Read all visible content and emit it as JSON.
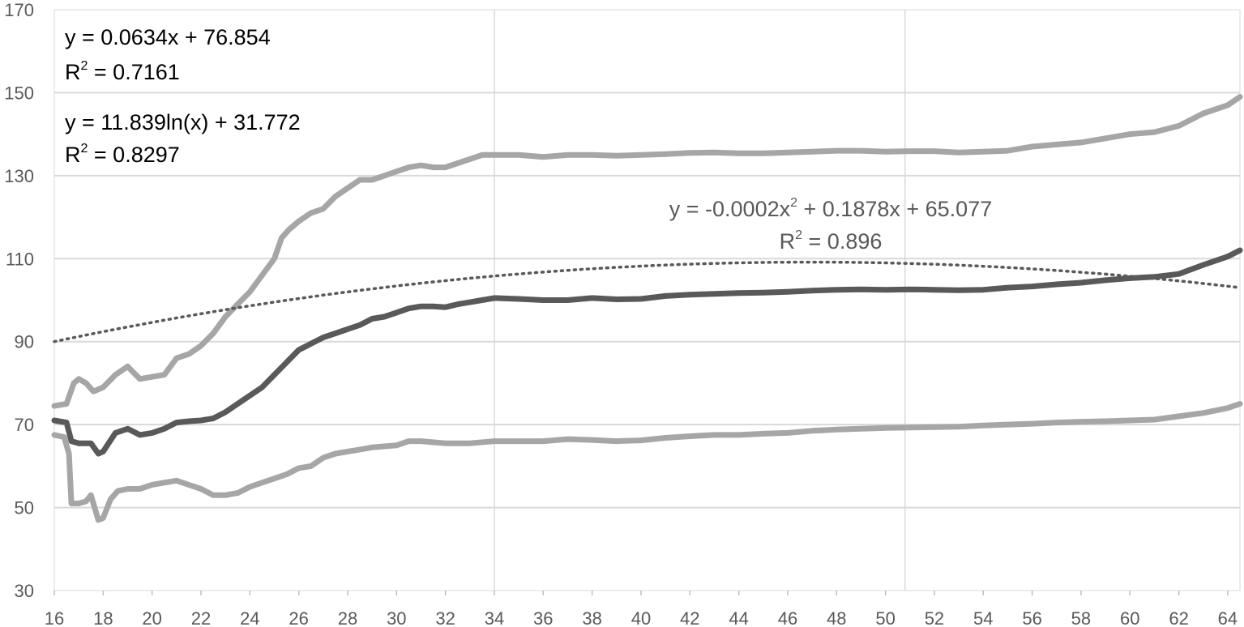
{
  "chart_data": {
    "type": "line",
    "x_ticks": [
      16,
      18,
      20,
      22,
      24,
      26,
      28,
      30,
      32,
      34,
      36,
      38,
      40,
      42,
      44,
      46,
      48,
      50,
      52,
      54,
      56,
      58,
      60,
      62,
      64
    ],
    "y_ticks": [
      30,
      50,
      70,
      90,
      110,
      130,
      150,
      170
    ],
    "xlim": [
      16,
      64.5
    ],
    "ylim": [
      30,
      170
    ],
    "grid": "horizontal",
    "x_reference_lines": [
      34,
      50.8
    ],
    "series": [
      {
        "role": "upper",
        "color": "#a6a6a6",
        "points": [
          [
            16,
            74.5
          ],
          [
            16.5,
            75
          ],
          [
            16.8,
            80
          ],
          [
            17,
            81
          ],
          [
            17.3,
            80
          ],
          [
            17.6,
            78
          ],
          [
            18,
            79
          ],
          [
            18.5,
            82
          ],
          [
            19,
            84
          ],
          [
            19.5,
            81
          ],
          [
            20,
            81.5
          ],
          [
            20.5,
            82
          ],
          [
            21,
            86
          ],
          [
            21.5,
            87
          ],
          [
            22,
            89
          ],
          [
            22.5,
            92
          ],
          [
            23,
            96
          ],
          [
            23.5,
            99
          ],
          [
            24,
            102
          ],
          [
            24.5,
            106
          ],
          [
            25,
            110
          ],
          [
            25.3,
            115
          ],
          [
            25.6,
            117
          ],
          [
            26,
            119
          ],
          [
            26.5,
            121
          ],
          [
            27,
            122
          ],
          [
            27.5,
            125
          ],
          [
            28,
            127
          ],
          [
            28.5,
            129
          ],
          [
            29,
            129
          ],
          [
            29.5,
            130
          ],
          [
            30,
            131
          ],
          [
            30.5,
            132
          ],
          [
            31,
            132.5
          ],
          [
            31.5,
            132
          ],
          [
            32,
            132
          ],
          [
            32.5,
            133
          ],
          [
            33,
            134
          ],
          [
            33.5,
            135
          ],
          [
            34,
            135
          ],
          [
            35,
            135
          ],
          [
            36,
            134.5
          ],
          [
            37,
            135
          ],
          [
            38,
            135
          ],
          [
            39,
            134.8
          ],
          [
            40,
            135
          ],
          [
            41,
            135.2
          ],
          [
            42,
            135.5
          ],
          [
            43,
            135.6
          ],
          [
            44,
            135.4
          ],
          [
            45,
            135.4
          ],
          [
            46,
            135.6
          ],
          [
            47,
            135.8
          ],
          [
            48,
            136
          ],
          [
            49,
            136
          ],
          [
            50,
            135.8
          ],
          [
            51,
            135.9
          ],
          [
            52,
            135.9
          ],
          [
            53,
            135.6
          ],
          [
            54,
            135.8
          ],
          [
            55,
            136
          ],
          [
            56,
            137
          ],
          [
            57,
            137.5
          ],
          [
            58,
            138
          ],
          [
            59,
            139
          ],
          [
            60,
            140
          ],
          [
            61,
            140.5
          ],
          [
            62,
            142
          ],
          [
            63,
            145
          ],
          [
            64,
            147
          ],
          [
            64.5,
            149
          ]
        ]
      },
      {
        "role": "mean",
        "color": "#595959",
        "points": [
          [
            16,
            71
          ],
          [
            16.5,
            70.5
          ],
          [
            16.7,
            66
          ],
          [
            17,
            65.5
          ],
          [
            17.5,
            65.5
          ],
          [
            17.8,
            63
          ],
          [
            18,
            63.5
          ],
          [
            18.5,
            68
          ],
          [
            19,
            69
          ],
          [
            19.5,
            67.5
          ],
          [
            20,
            68
          ],
          [
            20.5,
            69
          ],
          [
            21,
            70.5
          ],
          [
            21.5,
            70.8
          ],
          [
            22,
            71
          ],
          [
            22.5,
            71.5
          ],
          [
            23,
            73
          ],
          [
            23.5,
            75
          ],
          [
            24,
            77
          ],
          [
            24.5,
            79
          ],
          [
            25,
            82
          ],
          [
            25.5,
            85
          ],
          [
            26,
            88
          ],
          [
            26.5,
            89.5
          ],
          [
            27,
            91
          ],
          [
            27.5,
            92
          ],
          [
            28,
            93
          ],
          [
            28.5,
            94
          ],
          [
            29,
            95.5
          ],
          [
            29.5,
            96
          ],
          [
            30,
            97
          ],
          [
            30.5,
            98
          ],
          [
            31,
            98.5
          ],
          [
            31.5,
            98.5
          ],
          [
            32,
            98.3
          ],
          [
            32.5,
            99
          ],
          [
            33,
            99.5
          ],
          [
            33.5,
            100
          ],
          [
            34,
            100.5
          ],
          [
            35,
            100.3
          ],
          [
            36,
            100
          ],
          [
            37,
            100
          ],
          [
            38,
            100.5
          ],
          [
            39,
            100.2
          ],
          [
            40,
            100.3
          ],
          [
            41,
            101
          ],
          [
            42,
            101.3
          ],
          [
            43,
            101.5
          ],
          [
            44,
            101.7
          ],
          [
            45,
            101.8
          ],
          [
            46,
            102
          ],
          [
            47,
            102.3
          ],
          [
            48,
            102.5
          ],
          [
            49,
            102.6
          ],
          [
            50,
            102.5
          ],
          [
            51,
            102.6
          ],
          [
            52,
            102.5
          ],
          [
            53,
            102.4
          ],
          [
            54,
            102.5
          ],
          [
            55,
            103
          ],
          [
            56,
            103.3
          ],
          [
            57,
            103.8
          ],
          [
            58,
            104.2
          ],
          [
            59,
            104.8
          ],
          [
            60,
            105.3
          ],
          [
            61,
            105.6
          ],
          [
            62,
            106.3
          ],
          [
            63,
            108.5
          ],
          [
            64,
            110.5
          ],
          [
            64.5,
            112
          ]
        ]
      },
      {
        "role": "lower",
        "color": "#a6a6a6",
        "points": [
          [
            16,
            67.5
          ],
          [
            16.4,
            67
          ],
          [
            16.6,
            63
          ],
          [
            16.7,
            51
          ],
          [
            17,
            51
          ],
          [
            17.3,
            51.5
          ],
          [
            17.5,
            53
          ],
          [
            17.8,
            47
          ],
          [
            18,
            47.5
          ],
          [
            18.3,
            52
          ],
          [
            18.6,
            54
          ],
          [
            19,
            54.5
          ],
          [
            19.5,
            54.5
          ],
          [
            20,
            55.5
          ],
          [
            20.5,
            56
          ],
          [
            21,
            56.5
          ],
          [
            21.5,
            55.5
          ],
          [
            22,
            54.5
          ],
          [
            22.5,
            53
          ],
          [
            23,
            53
          ],
          [
            23.5,
            53.5
          ],
          [
            24,
            55
          ],
          [
            24.5,
            56
          ],
          [
            25,
            57
          ],
          [
            25.5,
            58
          ],
          [
            26,
            59.5
          ],
          [
            26.5,
            60
          ],
          [
            27,
            62
          ],
          [
            27.5,
            63
          ],
          [
            28,
            63.5
          ],
          [
            28.5,
            64
          ],
          [
            29,
            64.5
          ],
          [
            30,
            65
          ],
          [
            30.5,
            66
          ],
          [
            31,
            66
          ],
          [
            32,
            65.5
          ],
          [
            33,
            65.5
          ],
          [
            34,
            66
          ],
          [
            35,
            66
          ],
          [
            36,
            66
          ],
          [
            37,
            66.5
          ],
          [
            38,
            66.3
          ],
          [
            39,
            66
          ],
          [
            40,
            66.2
          ],
          [
            41,
            66.8
          ],
          [
            42,
            67.2
          ],
          [
            43,
            67.5
          ],
          [
            44,
            67.5
          ],
          [
            45,
            67.8
          ],
          [
            46,
            68
          ],
          [
            47,
            68.5
          ],
          [
            48,
            68.8
          ],
          [
            49,
            69
          ],
          [
            50,
            69.2
          ],
          [
            51,
            69.3
          ],
          [
            52,
            69.4
          ],
          [
            53,
            69.5
          ],
          [
            54,
            69.8
          ],
          [
            55,
            70
          ],
          [
            56,
            70.2
          ],
          [
            57,
            70.5
          ],
          [
            58,
            70.7
          ],
          [
            59,
            70.8
          ],
          [
            60,
            71
          ],
          [
            61,
            71.2
          ],
          [
            62,
            72
          ],
          [
            63,
            72.8
          ],
          [
            64,
            74
          ],
          [
            64.5,
            75
          ]
        ]
      },
      {
        "role": "trendline",
        "style": "dotted",
        "color": "#595959",
        "quadratic_a": -0.0002,
        "quadratic_b": 0.1878,
        "quadratic_c": 65.077,
        "x_scale": 10,
        "x_range": [
          16,
          64.5
        ]
      }
    ],
    "annotations": [
      {
        "line1": "y = 0.0634x + 76.854",
        "r2_prefix": "R",
        "r2_value": " = 0.7161"
      },
      {
        "line1": "y = 11.839ln(x) + 31.772",
        "r2_prefix": "R",
        "r2_value": " = 0.8297"
      },
      {
        "line1_a": "y = -0.0002x",
        "line1_b": " + 0.1878x + 65.077",
        "r2_prefix": "R",
        "r2_value": " = 0.896"
      }
    ],
    "superscript": "2"
  }
}
